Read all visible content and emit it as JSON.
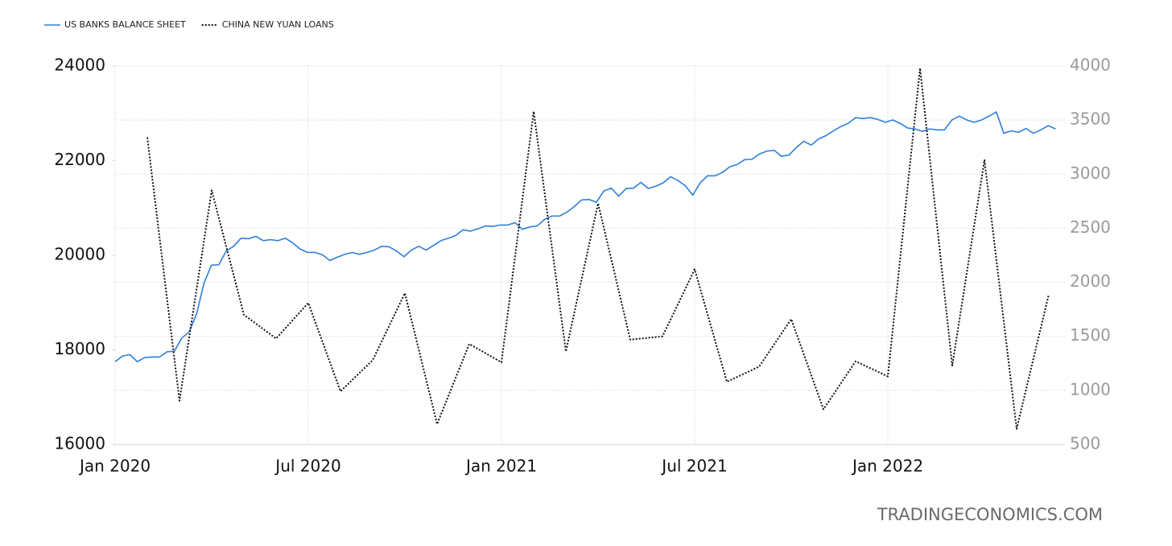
{
  "chart_data": {
    "type": "line",
    "source": "TRADINGECONOMICS.COM",
    "grid": true,
    "legend": "top-left",
    "xlim": [
      0,
      29.5
    ],
    "xticks": [
      {
        "value": 0,
        "label": "Jan 2020"
      },
      {
        "value": 6,
        "label": "Jul 2020"
      },
      {
        "value": 12,
        "label": "Jan 2021"
      },
      {
        "value": 18,
        "label": "Jul 2021"
      },
      {
        "value": 24,
        "label": "Jan 2022"
      }
    ],
    "ylim": [
      16000,
      24000
    ],
    "yticks": [
      16000,
      18000,
      20000,
      22000,
      24000
    ],
    "y2lim": [
      500,
      4000
    ],
    "y2ticks": [
      500,
      1000,
      1500,
      2000,
      2500,
      3000,
      3500,
      4000
    ],
    "series": [
      {
        "name": "US BANKS BALANCE SHEET",
        "color": "#2f80d8",
        "line_style": "solid",
        "axis": "y",
        "x": [
          0,
          0.23,
          0.46,
          0.69,
          0.92,
          1.15,
          1.38,
          1.61,
          1.84,
          2.07,
          2.3,
          2.53,
          2.76,
          2.99,
          3.22,
          3.45,
          3.68,
          3.91,
          4.14,
          4.37,
          4.6,
          4.83,
          5.06,
          5.29,
          5.52,
          5.75,
          5.98,
          6.21,
          6.44,
          6.67,
          6.9,
          7.13,
          7.36,
          7.59,
          7.82,
          8.05,
          8.28,
          8.51,
          8.74,
          8.97,
          9.2,
          9.43,
          9.66,
          9.89,
          10.12,
          10.35,
          10.58,
          10.81,
          11.04,
          11.27,
          11.5,
          11.73,
          11.96,
          12.19,
          12.42,
          12.65,
          12.88,
          13.11,
          13.34,
          13.57,
          13.8,
          14.03,
          14.26,
          14.49,
          14.72,
          14.95,
          15.18,
          15.41,
          15.64,
          15.87,
          16.1,
          16.33,
          16.56,
          16.79,
          17.02,
          17.25,
          17.48,
          17.71,
          17.94,
          18.17,
          18.4,
          18.63,
          18.86,
          19.09,
          19.32,
          19.55,
          19.78,
          20.01,
          20.24,
          20.47,
          20.7,
          20.93,
          21.16,
          21.39,
          21.62,
          21.85,
          22.08,
          22.31,
          22.54,
          22.77,
          23,
          23.23,
          23.46,
          23.69,
          23.92,
          24.15,
          24.38,
          24.61,
          24.84,
          25.07,
          25.3,
          25.53,
          25.76,
          25.99,
          26.22,
          26.45,
          26.68,
          26.91,
          27.14,
          27.37,
          27.6,
          27.83,
          28.06,
          28.29,
          28.52,
          28.75,
          28.98,
          29.21
        ],
        "values": [
          17750,
          17870,
          17900,
          17750,
          17840,
          17850,
          17850,
          17960,
          17970,
          18250,
          18380,
          18760,
          19410,
          19790,
          19800,
          20090,
          20190,
          20360,
          20350,
          20400,
          20310,
          20330,
          20310,
          20360,
          20260,
          20130,
          20060,
          20060,
          20010,
          19890,
          19960,
          20020,
          20060,
          20020,
          20060,
          20110,
          20190,
          20180,
          20090,
          19970,
          20110,
          20190,
          20110,
          20210,
          20310,
          20360,
          20420,
          20540,
          20510,
          20560,
          20620,
          20610,
          20640,
          20640,
          20690,
          20550,
          20600,
          20620,
          20760,
          20830,
          20830,
          20910,
          21030,
          21170,
          21180,
          21120,
          21360,
          21420,
          21250,
          21410,
          21420,
          21540,
          21410,
          21460,
          21530,
          21660,
          21580,
          21470,
          21270,
          21530,
          21680,
          21680,
          21750,
          21870,
          21920,
          22020,
          22030,
          22140,
          22200,
          22220,
          22090,
          22120,
          22280,
          22410,
          22330,
          22460,
          22530,
          22630,
          22720,
          22790,
          22910,
          22890,
          22910,
          22870,
          22810,
          22860,
          22790,
          22690,
          22670,
          22620,
          22670,
          22650,
          22650,
          22860,
          22940,
          22860,
          22810,
          22860,
          22940,
          23030,
          22580,
          22630,
          22600,
          22680,
          22580,
          22650,
          22740,
          22670
        ]
      },
      {
        "name": "CHINA NEW YUAN LOANS",
        "color": "#111111",
        "line_style": "dotted",
        "axis": "y2",
        "x": [
          1,
          2,
          3,
          4,
          5,
          6,
          7,
          8,
          9,
          10,
          11,
          12,
          13,
          14,
          15,
          16,
          17,
          18,
          19,
          20,
          21,
          22,
          23,
          24,
          25,
          26,
          27,
          28,
          29
        ],
        "values": [
          3340,
          905,
          2850,
          1700,
          1480,
          1810,
          992,
          1280,
          1900,
          689,
          1430,
          1260,
          3580,
          1360,
          2730,
          1470,
          1500,
          2120,
          1080,
          1220,
          1660,
          826,
          1270,
          1130,
          3980,
          1230,
          3130,
          645,
          1890
        ]
      }
    ]
  }
}
